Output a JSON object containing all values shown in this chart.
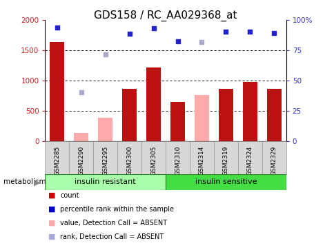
{
  "title": "GDS158 / RC_AA029368_at",
  "samples": [
    "GSM2285",
    "GSM2290",
    "GSM2295",
    "GSM2300",
    "GSM2305",
    "GSM2310",
    "GSM2314",
    "GSM2319",
    "GSM2324",
    "GSM2329"
  ],
  "count_values": [
    1640,
    null,
    null,
    860,
    1220,
    645,
    null,
    870,
    980,
    860
  ],
  "absent_value_bars": [
    null,
    140,
    390,
    null,
    null,
    null,
    760,
    null,
    null,
    null
  ],
  "rank_dark_blue": [
    1880,
    null,
    null,
    1780,
    1870,
    1650,
    null,
    1810,
    1810,
    1790
  ],
  "rank_light_blue": [
    null,
    810,
    1430,
    null,
    null,
    null,
    1640,
    null,
    null,
    null
  ],
  "ylim_left": [
    0,
    2000
  ],
  "ylim_right": [
    0,
    100
  ],
  "yticks_left": [
    0,
    500,
    1000,
    1500,
    2000
  ],
  "yticks_right": [
    0,
    25,
    50,
    75,
    100
  ],
  "group1_label": "insulin resistant",
  "group2_label": "insulin sensitive",
  "group1_indices": [
    0,
    1,
    2,
    3,
    4
  ],
  "group2_indices": [
    5,
    6,
    7,
    8,
    9
  ],
  "metabolism_label": "metabolism",
  "legend_items": [
    {
      "label": "count",
      "color": "#cc0000"
    },
    {
      "label": "percentile rank within the sample",
      "color": "#0000cc"
    },
    {
      "label": "value, Detection Call = ABSENT",
      "color": "#ffaaaa"
    },
    {
      "label": "rank, Detection Call = ABSENT",
      "color": "#aaaadd"
    }
  ],
  "bar_width": 0.6,
  "bar_color_present": "#bb1111",
  "bar_color_absent_val": "#ffaaaa",
  "dot_color_present": "#2222cc",
  "dot_color_absent": "#aaaacc",
  "bg_ticklabel": "#d8d8d8",
  "group1_color": "#aaffaa",
  "group2_color": "#44dd44",
  "title_fontsize": 11
}
